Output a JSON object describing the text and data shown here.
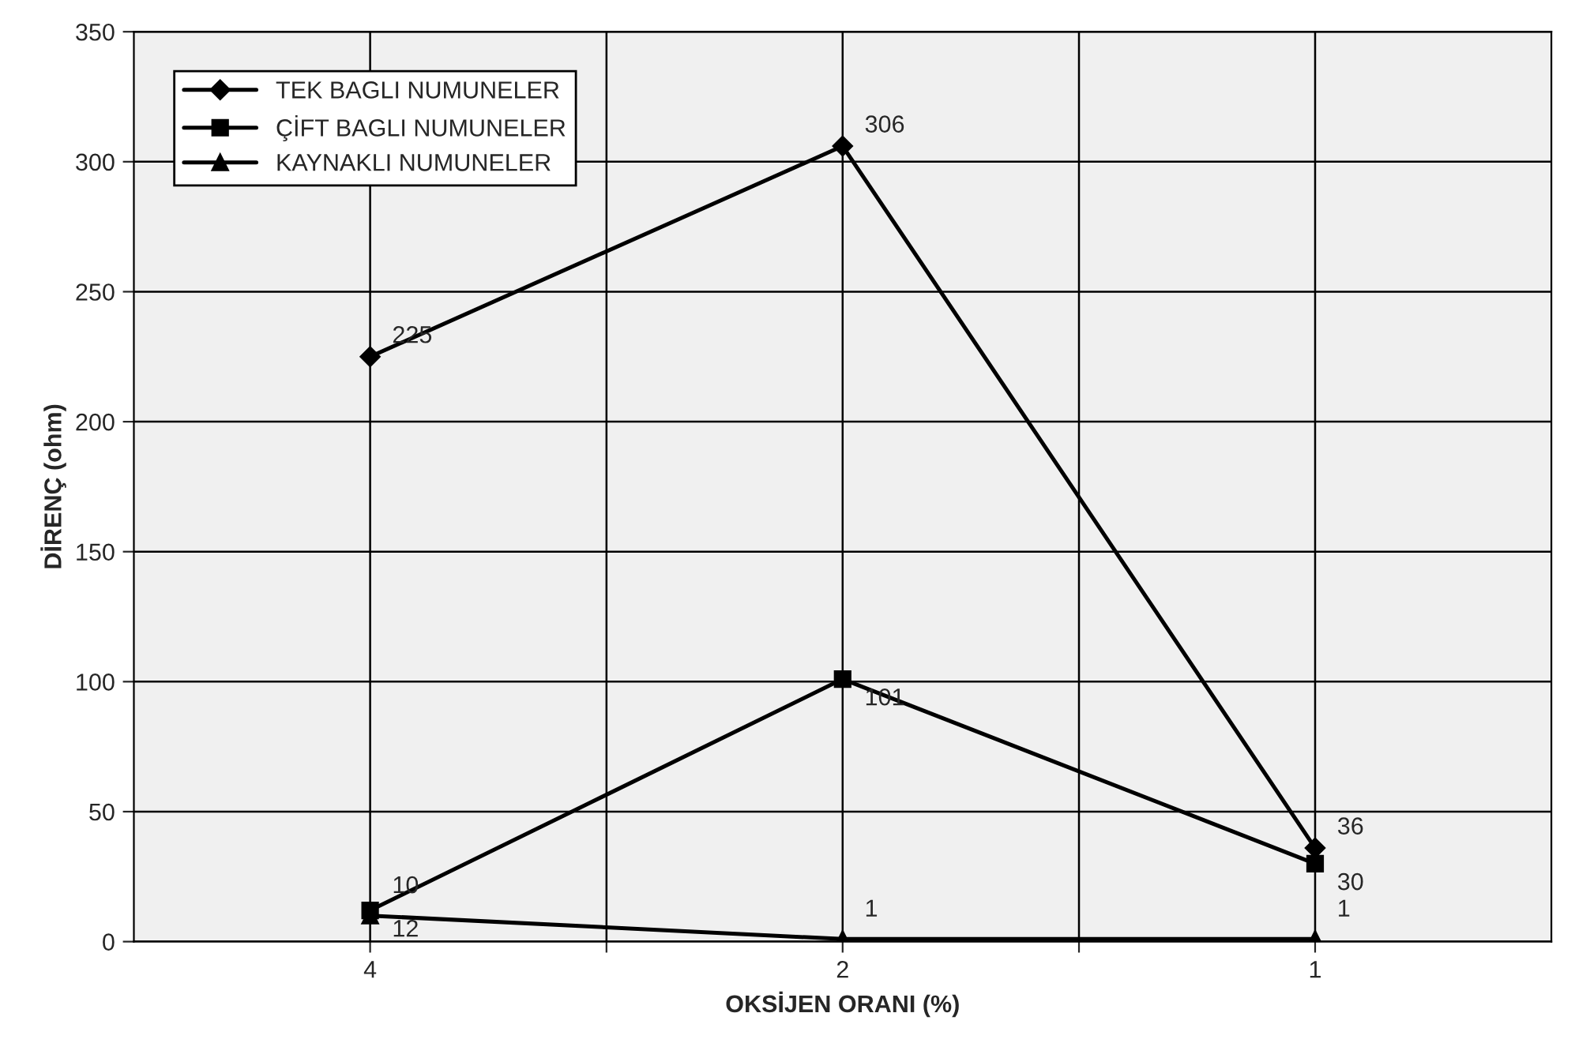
{
  "chart_data": {
    "type": "line",
    "xlabel": "OKSİJEN ORANI (%)",
    "ylabel": "DİRENÇ (ohm)",
    "x": [
      4,
      2,
      1
    ],
    "log": "x",
    "series": [
      {
        "name": "TEK BAGLI NUMUNELER",
        "color": "#000000",
        "marker": "diamond",
        "values": [
          225,
          306,
          36
        ]
      },
      {
        "name": "ÇİFT BAGLI NUMUNELER",
        "color": "#000000",
        "marker": "square",
        "values": [
          12,
          101,
          30
        ]
      },
      {
        "name": "KAYNAKLI NUMUNELER",
        "color": "#000000",
        "marker": "triangle",
        "values": [
          10,
          1,
          1
        ]
      }
    ],
    "xlim": [
      5.657,
      0.7071
    ],
    "xticks": [
      4,
      {
        "value": 2.828,
        "label": null
      },
      2,
      {
        "value": 1.414,
        "label": null
      },
      1
    ],
    "ylim": [
      0,
      350
    ],
    "yticks": [
      0,
      50,
      100,
      150,
      200,
      250,
      300,
      350
    ],
    "grid": true,
    "legend": "top left",
    "data_labels": true,
    "line_style": "solid"
  }
}
